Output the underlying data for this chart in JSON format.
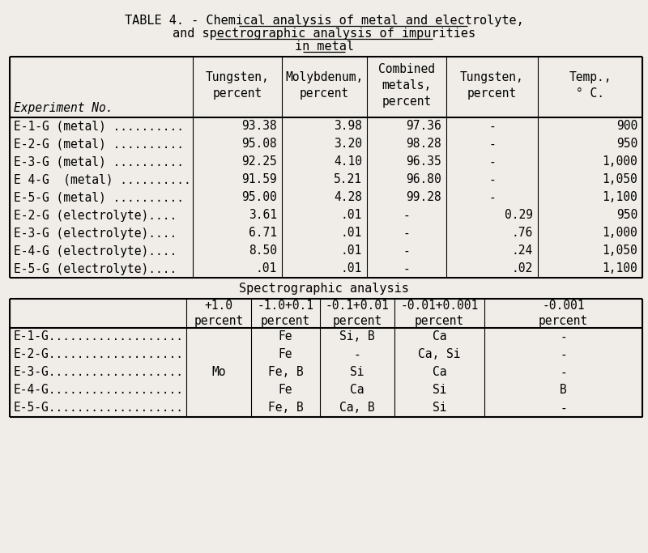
{
  "bg_color": "#f0ede8",
  "title_prefix": "TABLE 4. - ",
  "title_ul1": "Chemical analysis of metal and electrolyte,",
  "title_ul2": "and spectrographic analysis of impurities",
  "title_ul3": "in metal",
  "top_col_headers": [
    [
      "Tungsten,",
      "percent"
    ],
    [
      "Molybdenum,",
      "percent"
    ],
    [
      "Combined",
      "metals,",
      "percent"
    ],
    [
      "Tungsten,",
      "percent"
    ],
    [
      "Temp.,",
      "° C."
    ]
  ],
  "exp_no_label": "Experiment No.",
  "top_rows": [
    [
      "E-1-G (metal) ..........",
      "93.38",
      "3.98",
      "97.36",
      "-",
      "900"
    ],
    [
      "E-2-G (metal) ..........",
      "95.08",
      "3.20",
      "98.28",
      "-",
      "950"
    ],
    [
      "E-3-G (metal) ..........",
      "92.25",
      "4.10",
      "96.35",
      "-",
      "1,000"
    ],
    [
      "E 4-G  (metal) ..........",
      "91.59",
      "5.21",
      "96.80",
      "-",
      "1,050"
    ],
    [
      "E-5-G (metal) ..........",
      "95.00",
      "4.28",
      "99.28",
      "-",
      "1,100"
    ],
    [
      "E-2-G (electrolyte)....",
      "3.61",
      ".01",
      "-",
      "0.29",
      "950"
    ],
    [
      "E-3-G (electrolyte)....",
      "6.71",
      ".01",
      "-",
      ".76",
      "1,000"
    ],
    [
      "E-4-G (electrolyte)....",
      "8.50",
      ".01",
      "-",
      ".24",
      "1,050"
    ],
    [
      "E-5-G (electrolyte)....",
      ".01",
      ".01",
      "-",
      ".02",
      "1,100"
    ]
  ],
  "spec_label": "Spectrographic analysis",
  "spec_col_headers": [
    [
      "+1.0",
      "percent"
    ],
    [
      "-1.0+0.1",
      "percent"
    ],
    [
      "-0.1+0.01",
      "percent"
    ],
    [
      "-0.01+0.001",
      "percent"
    ],
    [
      "-0.001",
      "percent"
    ]
  ],
  "spec_rows": [
    [
      "E-1-G...................",
      "",
      "Fe",
      "Si, B",
      "Ca",
      "-"
    ],
    [
      "E-2-G...................",
      "",
      "Fe",
      "-",
      "Ca, Si",
      "-"
    ],
    [
      "E-3-G...................",
      "Mo",
      "Fe, B",
      "Si",
      "Ca",
      "-"
    ],
    [
      "E-4-G...................",
      "",
      "Fe",
      "Ca",
      "Si",
      "B"
    ],
    [
      "E-5-G...................",
      "",
      "Fe, B",
      "Ca, B",
      "Si",
      "-"
    ]
  ]
}
